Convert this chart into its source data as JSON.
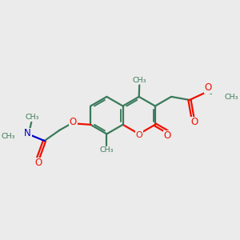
{
  "bg_color": "#ebebeb",
  "bond_color": "#3a7a5a",
  "oxygen_color": "#ee1100",
  "nitrogen_color": "#0000cc",
  "lw": 1.6,
  "figsize": [
    3.0,
    3.0
  ],
  "dpi": 100,
  "xlim": [
    0,
    10
  ],
  "ylim": [
    0,
    10
  ]
}
